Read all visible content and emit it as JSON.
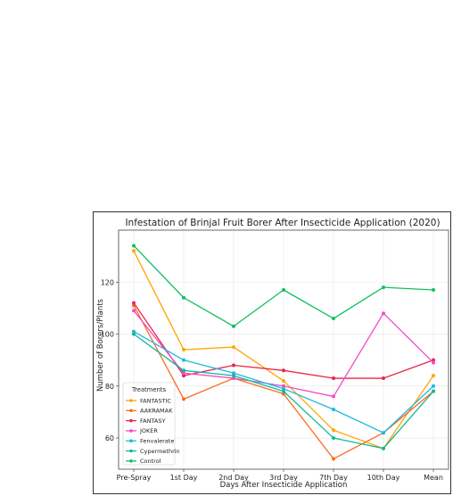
{
  "chart_data": {
    "type": "line",
    "title": "Infestation of Brinjal Fruit Borer After Insecticide Application (2020)",
    "xlabel": "Days After Insecticide Application",
    "ylabel": "Number of Borers/Plants",
    "categories": [
      "Pre-Spray",
      "1st Day",
      "2nd Day",
      "3rd Day",
      "7th Day",
      "10th Day",
      "Mean"
    ],
    "ylim": [
      48,
      140
    ],
    "yticks": [
      60,
      80,
      100,
      120
    ],
    "grid": true,
    "legend": {
      "title": "Treatments",
      "placement": "lower-left"
    },
    "series": [
      {
        "name": "FANTASTIC",
        "color": "#FFA500",
        "values": [
          132,
          94,
          95,
          82,
          63,
          56,
          84
        ]
      },
      {
        "name": "AAKRAMAK",
        "color": "#FF6A1A",
        "values": [
          111,
          75,
          83,
          77,
          52,
          62,
          78
        ]
      },
      {
        "name": "FANTASY",
        "color": "#E8254A",
        "values": [
          112,
          84,
          88,
          86,
          83,
          83,
          90
        ]
      },
      {
        "name": "JOKER",
        "color": "#F24BC8",
        "values": [
          109,
          85,
          83,
          80,
          76,
          108,
          89
        ]
      },
      {
        "name": "Fenvalerate",
        "color": "#1EB9E0",
        "values": [
          101,
          90,
          85,
          79,
          71,
          62,
          80
        ]
      },
      {
        "name": "Cypermethrin",
        "color": "#14B89A",
        "values": [
          100,
          86,
          84,
          78,
          60,
          56,
          78
        ]
      },
      {
        "name": "Control",
        "color": "#10C060",
        "values": [
          134,
          114,
          103,
          117,
          106,
          118,
          117
        ]
      }
    ]
  }
}
